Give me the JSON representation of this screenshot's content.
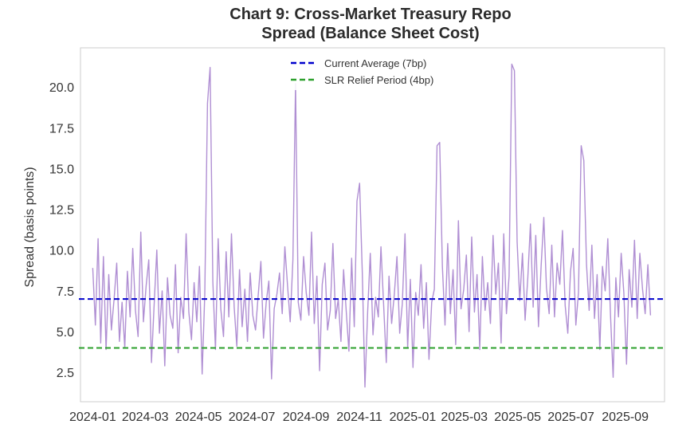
{
  "chart_data": {
    "type": "line",
    "title_line1": "Chart 9: Cross-Market Treasury Repo",
    "title_line2": "Spread (Balance Sheet Cost)",
    "xlabel": "",
    "ylabel": "Spread (basis points)",
    "x_range": [
      "2023-12-18",
      "2025-10-16"
    ],
    "ylim": [
      0.7,
      22.4
    ],
    "x_ticks": [
      "2024-01",
      "2024-03",
      "2024-05",
      "2024-07",
      "2024-09",
      "2024-11",
      "2025-01",
      "2025-03",
      "2025-05",
      "2025-07",
      "2025-09"
    ],
    "y_ticks": [
      2.5,
      5.0,
      7.5,
      10.0,
      12.5,
      15.0,
      17.5,
      20.0
    ],
    "y_tick_labels": [
      "2.5",
      "5.0",
      "7.5",
      "10.0",
      "12.5",
      "15.0",
      "17.5",
      "20.0"
    ],
    "grid": false,
    "legend_position": "upper center",
    "series": [
      {
        "color": "#b08fd3",
        "x_start": "2024-01-01",
        "x_end": "2025-09-30",
        "values": [
          8.9,
          5.4,
          10.7,
          4.3,
          9.6,
          3.9,
          8.5,
          5.1,
          7.0,
          9.2,
          4.4,
          6.8,
          4.0,
          8.7,
          5.9,
          10.1,
          6.3,
          4.7,
          11.1,
          5.6,
          7.8,
          9.4,
          3.1,
          6.6,
          10.0,
          4.9,
          7.5,
          2.9,
          8.3,
          6.0,
          5.2,
          9.1,
          3.7,
          7.1,
          5.8,
          11.0,
          6.2,
          4.5,
          8.0,
          5.6,
          9.0,
          2.4,
          7.3,
          19.0,
          21.2,
          8.1,
          3.9,
          10.7,
          6.4,
          4.7,
          9.9,
          5.9,
          11.0,
          6.5,
          4.1,
          8.8,
          5.3,
          7.6,
          4.4,
          8.6,
          6.0,
          5.1,
          7.2,
          9.3,
          4.6,
          6.8,
          8.1,
          2.1,
          6.4,
          7.3,
          8.6,
          6.1,
          10.2,
          7.8,
          5.6,
          9.4,
          20.2,
          6.8,
          5.7,
          9.6,
          7.4,
          6.0,
          11.1,
          5.5,
          8.4,
          2.6,
          7.9,
          9.2,
          5.1,
          6.3,
          10.4,
          5.8,
          7.0,
          4.4,
          8.8,
          6.2,
          3.8,
          9.5,
          5.3,
          13.0,
          14.1,
          8.6,
          1.6,
          6.2,
          9.8,
          4.8,
          7.1,
          5.9,
          10.2,
          6.6,
          3.1,
          8.4,
          5.5,
          7.3,
          9.6,
          4.9,
          6.7,
          11.0,
          4.0,
          8.2,
          2.8,
          7.4,
          6.0,
          9.1,
          5.2,
          8.0,
          3.3,
          6.8,
          7.6,
          16.4,
          16.6,
          9.0,
          5.4,
          10.4,
          6.1,
          8.8,
          4.2,
          11.8,
          6.4,
          7.6,
          9.7,
          5.0,
          10.8,
          6.2,
          8.5,
          3.9,
          9.6,
          6.3,
          8.0,
          5.5,
          10.9,
          7.3,
          9.2,
          4.3,
          11.0,
          6.1,
          8.4,
          21.4,
          21.0,
          10.5,
          6.9,
          9.8,
          5.7,
          8.3,
          11.6,
          6.5,
          10.9,
          5.3,
          9.0,
          12.0,
          7.7,
          6.1,
          10.3,
          5.9,
          9.2,
          7.9,
          11.2,
          6.6,
          4.9,
          8.7,
          10.1,
          5.4,
          7.4,
          16.4,
          15.5,
          9.1,
          6.3,
          10.3,
          5.8,
          8.5,
          3.9,
          9.0,
          7.5,
          10.7,
          6.0,
          2.2,
          8.3,
          5.9,
          9.8,
          7.4,
          3.0,
          8.8,
          6.5,
          10.6,
          5.8,
          9.8,
          7.6,
          6.1,
          9.1,
          6.0
        ]
      }
    ],
    "reference_lines": [
      {
        "label": "Current Average (7bp)",
        "y": 7.0,
        "color": "#0000cc",
        "style": "dashed"
      },
      {
        "label": "SLR Relief Period (4bp)",
        "y": 4.0,
        "color": "#2ca02c",
        "style": "dashed"
      }
    ]
  }
}
